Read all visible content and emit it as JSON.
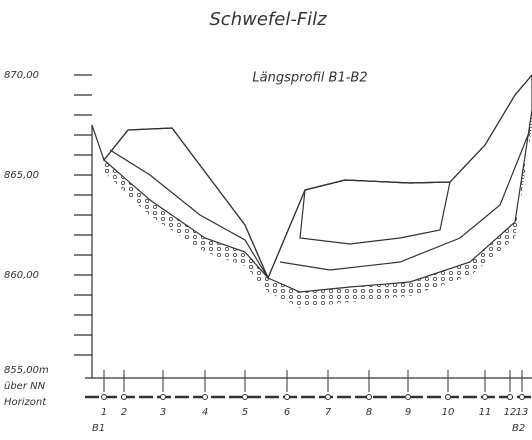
{
  "title": "Schwefel-Filz",
  "subtitle": "Längsprofil B1-B2",
  "y_axis": {
    "labels": [
      "870,00",
      "865,00",
      "860,00",
      "855,00m"
    ],
    "reference": [
      "über NN",
      "Horizont"
    ]
  },
  "boreholes": [
    "1",
    "2",
    "3",
    "4",
    "5",
    "6",
    "7",
    "8",
    "9",
    "10",
    "11",
    "12",
    "13"
  ],
  "endpoints": [
    "B1",
    "B2"
  ]
}
